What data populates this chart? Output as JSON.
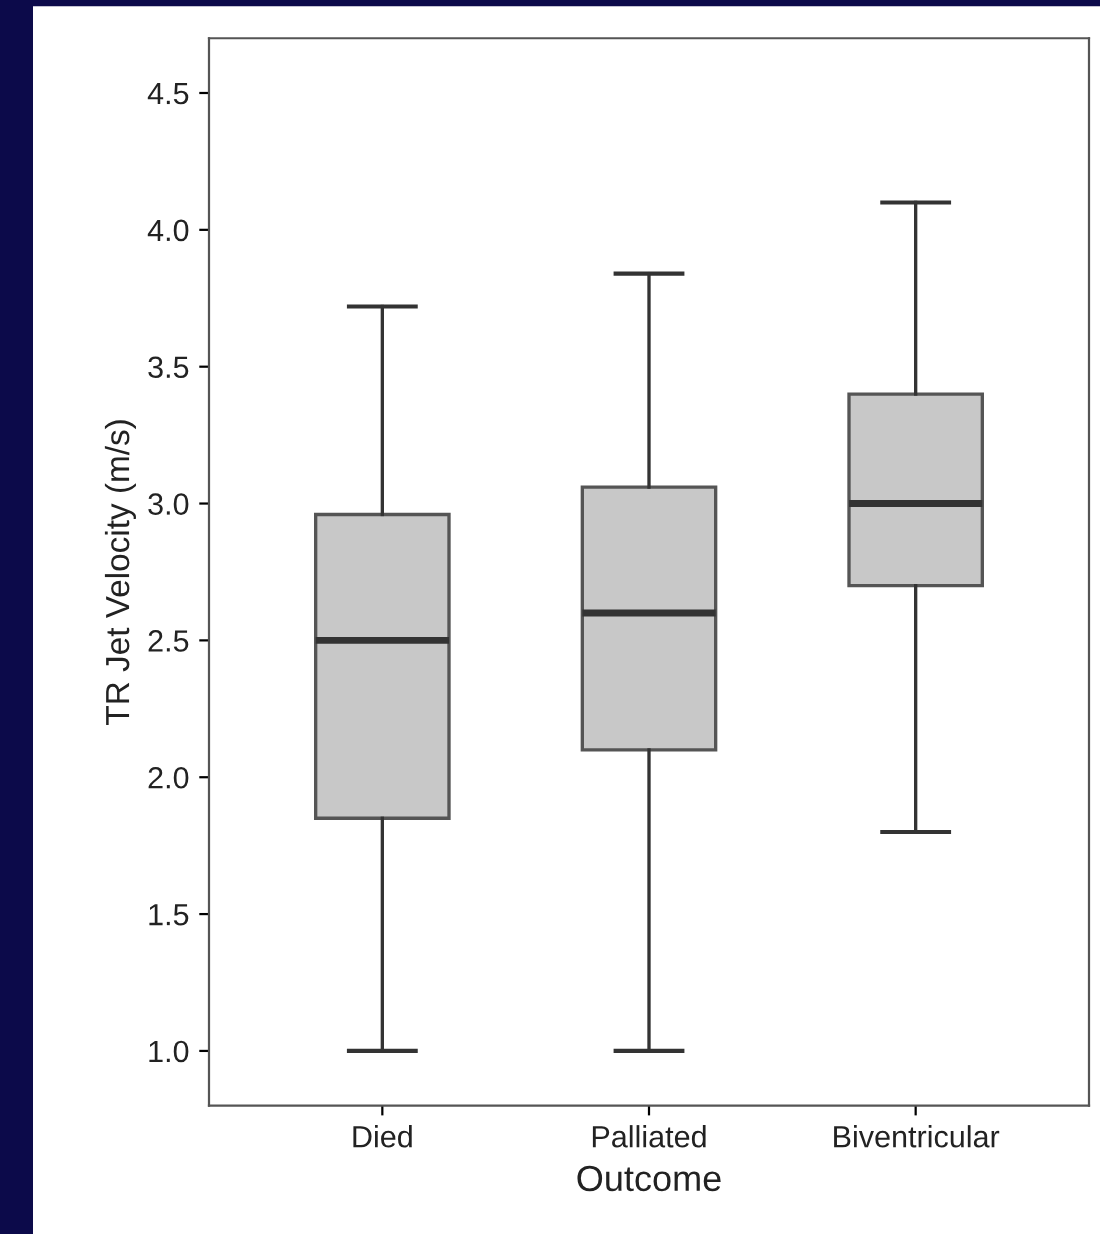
{
  "chart_data": {
    "type": "box",
    "xlabel": "Outcome",
    "ylabel": "TR Jet Velocity (m/s)",
    "categories": [
      "Died",
      "Palliated",
      "Biventricular"
    ],
    "boxes": [
      {
        "low": 1.0,
        "q1": 1.85,
        "median": 2.5,
        "q3": 2.96,
        "high": 3.72
      },
      {
        "low": 1.0,
        "q1": 2.1,
        "median": 2.6,
        "q3": 3.06,
        "high": 3.84
      },
      {
        "low": 1.8,
        "q1": 2.7,
        "median": 3.0,
        "q3": 3.4,
        "high": 4.1
      }
    ],
    "color": "#c8c8c8",
    "ylim": [
      0.8,
      4.7
    ],
    "yticks": [
      {
        "value": 1.0,
        "label": "1.0"
      },
      {
        "value": 1.5,
        "label": "1.5"
      },
      {
        "value": 2.0,
        "label": "2.0"
      },
      {
        "value": 2.5,
        "label": "2.5"
      },
      {
        "value": 3.0,
        "label": "3.0"
      },
      {
        "value": 3.5,
        "label": "3.5"
      },
      {
        "value": 4.0,
        "label": "4.0"
      },
      {
        "value": 4.5,
        "label": "4.5"
      }
    ],
    "grid": false
  }
}
